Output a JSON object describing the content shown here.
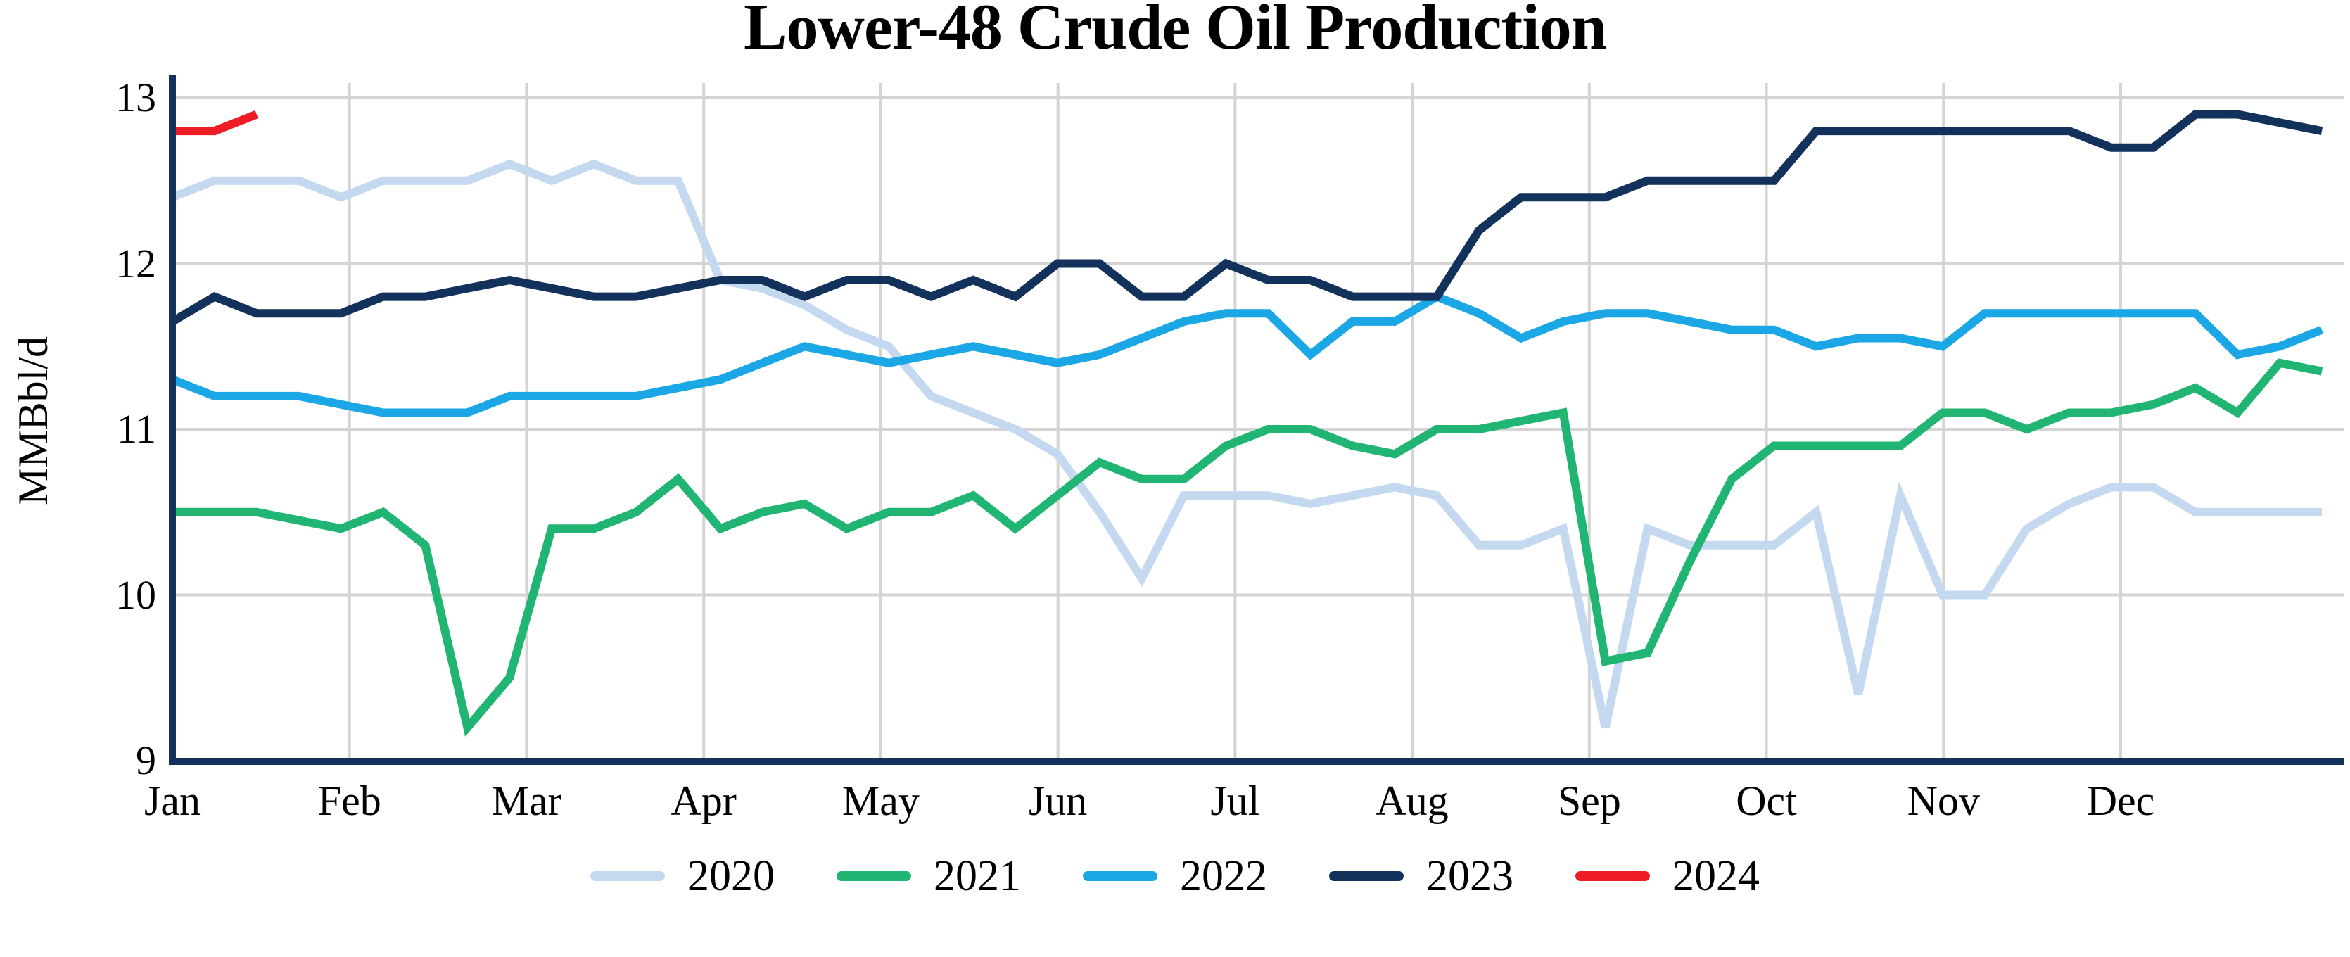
{
  "title": "Lower-48 Crude Oil Production",
  "y_axis": {
    "label": "MMBbl/d",
    "tick_labels": [
      "13",
      "12",
      "11",
      "10",
      "9"
    ],
    "tick_values": [
      13,
      12,
      11,
      10,
      9
    ],
    "min": 9,
    "max": 13
  },
  "x_axis": {
    "month_labels": [
      "Jan",
      "Feb",
      "Mar",
      "Apr",
      "May",
      "Jun",
      "Jul",
      "Aug",
      "Sep",
      "Oct",
      "Nov",
      "Dec"
    ]
  },
  "legend": {
    "position": "bottom",
    "entries": [
      "2020",
      "2021",
      "2022",
      "2023",
      "2024"
    ]
  },
  "colors": {
    "grid": "#D4D4D4",
    "axis": "#12325B",
    "text": "#000000",
    "background": "#FFFFFF"
  },
  "chart_data": {
    "type": "line",
    "title": "Lower-48 Crude Oil Production",
    "xlabel": "",
    "ylabel": "MMBbl/d",
    "ylim": [
      9,
      13
    ],
    "grid": true,
    "legend_position": "bottom",
    "x_description": "52 weekly points spanning Jan through Dec; month tick labels on x-axis",
    "categories": [
      "Jan",
      "Feb",
      "Mar",
      "Apr",
      "May",
      "Jun",
      "Jul",
      "Aug",
      "Sep",
      "Oct",
      "Nov",
      "Dec"
    ],
    "series": [
      {
        "name": "2020",
        "color": "#C4D9F0",
        "values": [
          12.4,
          12.5,
          12.5,
          12.5,
          12.4,
          12.5,
          12.5,
          12.5,
          12.6,
          12.5,
          12.6,
          12.5,
          12.5,
          11.9,
          11.85,
          11.75,
          11.6,
          11.5,
          11.2,
          11.1,
          11.0,
          10.85,
          10.5,
          10.1,
          10.6,
          10.6,
          10.6,
          10.55,
          10.6,
          10.65,
          10.6,
          10.3,
          10.3,
          10.4,
          9.2,
          10.4,
          10.3,
          10.3,
          10.3,
          10.5,
          9.4,
          10.6,
          10.0,
          10.0,
          10.4,
          10.55,
          10.65,
          10.65,
          10.5,
          10.5,
          10.5,
          10.5
        ]
      },
      {
        "name": "2021",
        "color": "#21B573",
        "values": [
          10.5,
          10.5,
          10.5,
          10.45,
          10.4,
          10.5,
          10.3,
          9.2,
          9.5,
          10.4,
          10.4,
          10.5,
          10.7,
          10.4,
          10.5,
          10.55,
          10.4,
          10.5,
          10.5,
          10.6,
          10.4,
          10.6,
          10.8,
          10.7,
          10.7,
          10.9,
          11.0,
          11.0,
          10.9,
          10.85,
          11.0,
          11.0,
          11.05,
          11.1,
          9.6,
          9.65,
          10.2,
          10.7,
          10.9,
          10.9,
          10.9,
          10.9,
          11.1,
          11.1,
          11.0,
          11.1,
          11.1,
          11.15,
          11.25,
          11.1,
          11.4,
          11.35
        ]
      },
      {
        "name": "2022",
        "color": "#1BA7E5",
        "values": [
          11.3,
          11.2,
          11.2,
          11.2,
          11.15,
          11.1,
          11.1,
          11.1,
          11.2,
          11.2,
          11.2,
          11.2,
          11.25,
          11.3,
          11.4,
          11.5,
          11.45,
          11.4,
          11.45,
          11.5,
          11.45,
          11.4,
          11.45,
          11.55,
          11.65,
          11.7,
          11.7,
          11.45,
          11.65,
          11.65,
          11.8,
          11.7,
          11.55,
          11.65,
          11.7,
          11.7,
          11.65,
          11.6,
          11.6,
          11.5,
          11.55,
          11.55,
          11.5,
          11.7,
          11.7,
          11.7,
          11.7,
          11.7,
          11.7,
          11.45,
          11.5,
          11.6
        ]
      },
      {
        "name": "2023",
        "color": "#12325B",
        "values": [
          11.65,
          11.8,
          11.7,
          11.7,
          11.7,
          11.8,
          11.8,
          11.85,
          11.9,
          11.85,
          11.8,
          11.8,
          11.85,
          11.9,
          11.9,
          11.8,
          11.9,
          11.9,
          11.8,
          11.9,
          11.8,
          12.0,
          12.0,
          11.8,
          11.8,
          12.0,
          11.9,
          11.9,
          11.8,
          11.8,
          11.8,
          12.2,
          12.4,
          12.4,
          12.4,
          12.5,
          12.5,
          12.5,
          12.5,
          12.8,
          12.8,
          12.8,
          12.8,
          12.8,
          12.8,
          12.8,
          12.7,
          12.7,
          12.9,
          12.9,
          12.85,
          12.8
        ]
      },
      {
        "name": "2024",
        "color": "#EE1C25",
        "values": [
          12.8,
          12.8,
          12.9
        ]
      }
    ]
  }
}
